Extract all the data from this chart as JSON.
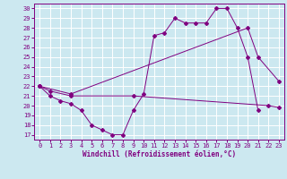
{
  "xlabel": "Windchill (Refroidissement éolien,°C)",
  "bg_color": "#cce8f0",
  "line_color": "#800080",
  "grid_color": "#ffffff",
  "xlim": [
    -0.5,
    23.5
  ],
  "ylim": [
    16.5,
    30.5
  ],
  "yticks": [
    17,
    18,
    19,
    20,
    21,
    22,
    23,
    24,
    25,
    26,
    27,
    28,
    29,
    30
  ],
  "xticks": [
    0,
    1,
    2,
    3,
    4,
    5,
    6,
    7,
    8,
    9,
    10,
    11,
    12,
    13,
    14,
    15,
    16,
    17,
    18,
    19,
    20,
    21,
    22,
    23
  ],
  "s1x": [
    0,
    1,
    2,
    3,
    4,
    5,
    6,
    7,
    8,
    9,
    10,
    11,
    12,
    13,
    14,
    15,
    16,
    17,
    18,
    19,
    20,
    21
  ],
  "s1y": [
    22,
    21,
    20.5,
    20.2,
    19.5,
    18,
    17.5,
    17,
    17,
    19.5,
    21.2,
    27.2,
    27.5,
    29,
    28.5,
    28.5,
    28.5,
    30,
    30,
    28,
    25,
    19.5
  ],
  "s2x": [
    0,
    1,
    3,
    9,
    22,
    23
  ],
  "s2y": [
    22,
    21.5,
    21,
    21,
    20,
    19.8
  ],
  "s3x": [
    0,
    3,
    20,
    21,
    23
  ],
  "s3y": [
    22,
    21.2,
    28,
    25,
    22.5
  ]
}
